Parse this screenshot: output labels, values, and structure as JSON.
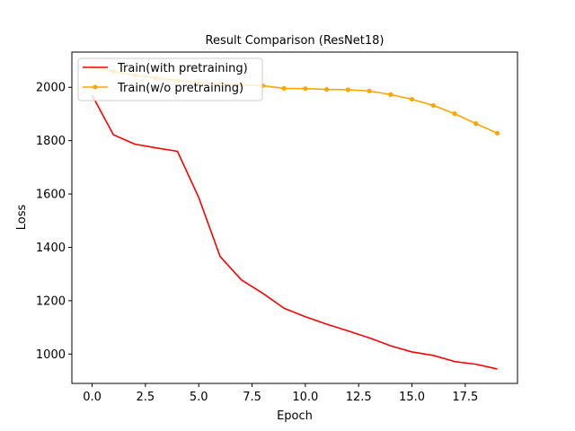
{
  "chart_data": {
    "type": "line",
    "title": "Result Comparison (ResNet18)",
    "xlabel": "Epoch",
    "ylabel": "Loss",
    "xlim": [
      -0.95,
      19.95
    ],
    "ylim": [
      890,
      2132
    ],
    "xticks": [
      0.0,
      2.5,
      5.0,
      7.5,
      10.0,
      12.5,
      15.0,
      17.5
    ],
    "xtick_labels": [
      "0.0",
      "2.5",
      "5.0",
      "7.5",
      "10.0",
      "12.5",
      "15.0",
      "17.5"
    ],
    "yticks": [
      1000,
      1200,
      1400,
      1600,
      1800,
      2000
    ],
    "ytick_labels": [
      "1000",
      "1200",
      "1400",
      "1600",
      "1800",
      "2000"
    ],
    "grid": false,
    "legend_position": "top-left",
    "x": [
      0,
      1,
      2,
      3,
      4,
      5,
      6,
      7,
      8,
      9,
      10,
      11,
      12,
      13,
      14,
      15,
      16,
      17,
      18,
      19
    ],
    "series": [
      {
        "name": "Train(with pretraining)",
        "color": "#ff0000",
        "marker": "none",
        "values": [
          1970,
          1822,
          1787,
          1773,
          1760,
          1587,
          1366,
          1278,
          1228,
          1172,
          1140,
          1112,
          1087,
          1061,
          1031,
          1008,
          995,
          972,
          962,
          944
        ]
      },
      {
        "name": "Train(w/o pretraining)",
        "color": "#ffa500",
        "marker": "dot",
        "values": [
          2075,
          2060,
          2045,
          2035,
          2025,
          2018,
          2012,
          2009,
          2006,
          1996,
          1995,
          1992,
          1991,
          1986,
          1973,
          1955,
          1932,
          1901,
          1864,
          1828
        ]
      }
    ]
  }
}
